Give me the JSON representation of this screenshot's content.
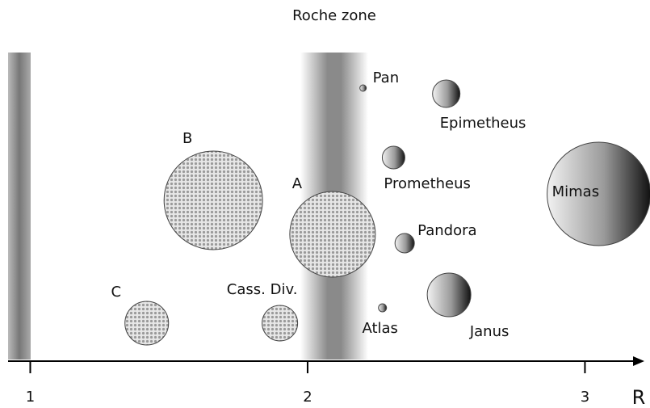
{
  "title": "Roche zone",
  "axis": {
    "label": "R",
    "xlim": [
      0.92,
      3.22
    ],
    "ticks": [
      1,
      2,
      3
    ]
  },
  "rings": [
    {
      "label": "C",
      "r": 1.42
    },
    {
      "label": "B",
      "r": 1.66
    },
    {
      "label": "Cass. Div.",
      "r": 1.9
    },
    {
      "label": "A",
      "r": 2.09
    }
  ],
  "moons": [
    {
      "label": "Pan",
      "r": 2.2
    },
    {
      "label": "Atlas",
      "r": 2.27
    },
    {
      "label": "Prometheus",
      "r": 2.31
    },
    {
      "label": "Pandora",
      "r": 2.35
    },
    {
      "label": "Epimetheus",
      "r": 2.5
    },
    {
      "label": "Janus",
      "r": 2.51
    },
    {
      "label": "Mimas",
      "r": 3.05
    }
  ]
}
